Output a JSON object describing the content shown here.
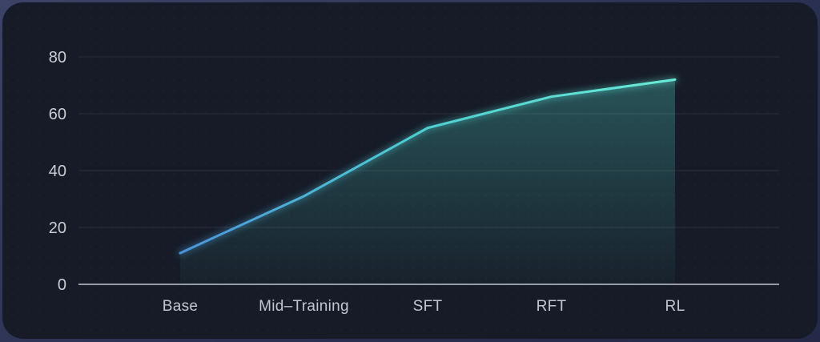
{
  "chart_data": {
    "type": "area",
    "title": "",
    "categories": [
      "Base",
      "Mid–Training",
      "SFT",
      "RFT",
      "RL"
    ],
    "values": [
      11,
      31,
      55,
      66,
      72
    ],
    "y_ticks": [
      0,
      20,
      40,
      60,
      80
    ],
    "ylim": [
      0,
      88
    ],
    "xlabel": "",
    "ylabel": "",
    "grid": true,
    "legend": false,
    "colors": {
      "line_gradient_start": "#4b94db",
      "line_gradient_mid": "#4ed0d2",
      "line_gradient_end": "#69ecda",
      "area_fill": "#56e8d8",
      "area_top_opacity": 0.28,
      "area_bottom_opacity": 0.03,
      "axis_line": "#969ba4",
      "grid_line": "rgba(255,255,255,0.09)",
      "y_tick_label": "#c9cdd4",
      "x_category_label": "#c2c7cf",
      "card_background": "#161b27",
      "outer_background": "#2b3152"
    }
  }
}
